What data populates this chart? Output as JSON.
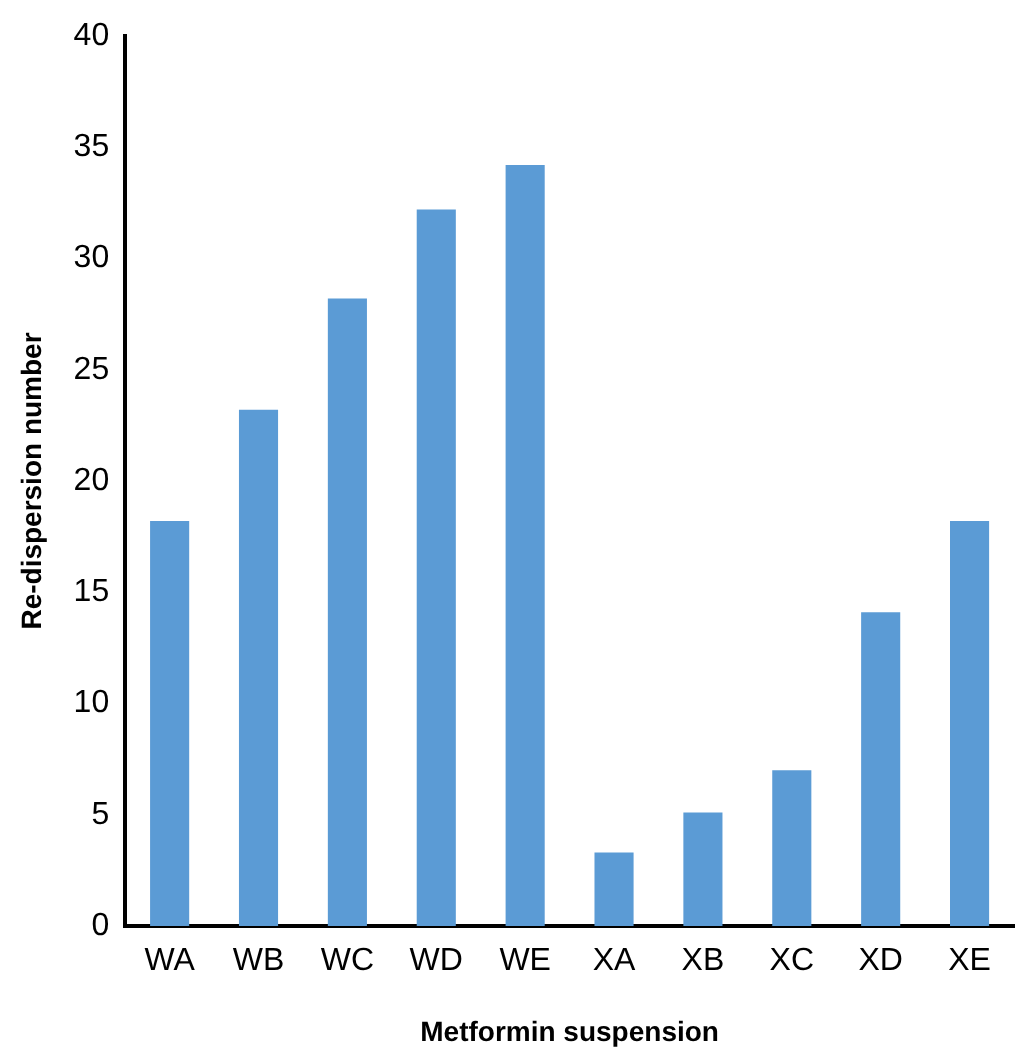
{
  "chart_data": {
    "type": "bar",
    "xlabel": "Metformin suspension",
    "ylabel": "Re-dispersion number",
    "categories": [
      "WA",
      "WB",
      "WC",
      "WD",
      "WE",
      "XA",
      "XB",
      "XC",
      "XD",
      "XE"
    ],
    "values": [
      18.2,
      23.2,
      28.2,
      32.2,
      34.2,
      3.3,
      5.1,
      7.0,
      14.1,
      18.2
    ],
    "color": "#5b9bd5",
    "ylim": [
      0,
      40
    ],
    "yticks": [
      0,
      5,
      10,
      15,
      20,
      25,
      30,
      35,
      40
    ],
    "grid": false
  }
}
